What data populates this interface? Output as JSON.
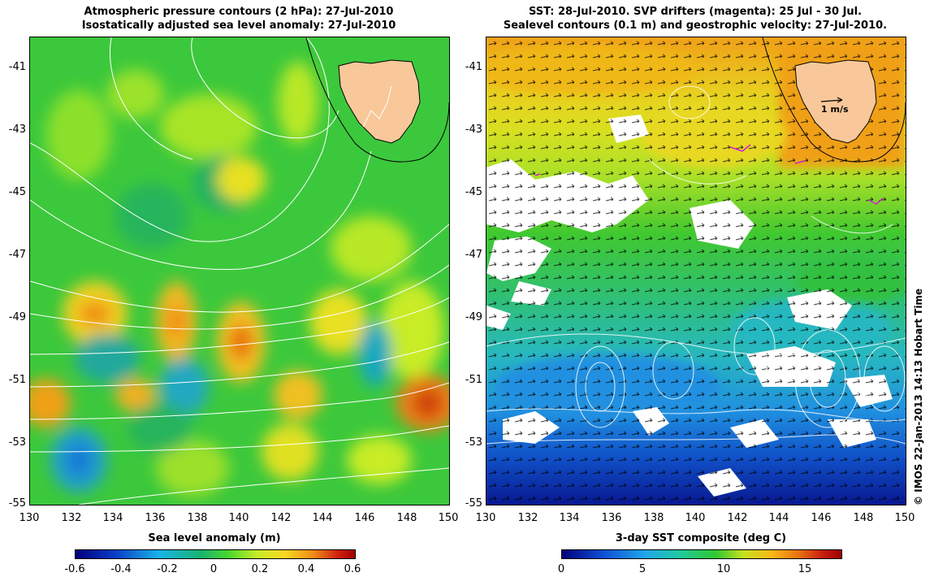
{
  "left_panel": {
    "title_line1": "Atmospheric pressure contours (2 hPa): 27-Jul-2010",
    "title_line2": "Isostatically adjusted sea level anomaly: 27-Jul-2010",
    "colorbar_title": "Sea level anomaly (m)",
    "colorbar_ticks": [
      "-0.6",
      "-0.4",
      "-0.2",
      "0",
      "0.2",
      "0.4",
      "0.6"
    ]
  },
  "right_panel": {
    "title_line1": "SST: 28-Jul-2010. SVP drifters (magenta): 25 Jul - 30 Jul.",
    "title_line2": "Sealevel contours (0.1 m) and geostrophic velocity: 27-Jul-2010.",
    "velocity_scale_label": "1 m/s",
    "colorbar_title": "3-day SST composite (deg C)",
    "colorbar_ticks": [
      "0",
      "5",
      "10",
      "15"
    ]
  },
  "axes": {
    "lat_ticks": [
      "-41",
      "-43",
      "-45",
      "-47",
      "-49",
      "-51",
      "-53",
      "-55"
    ],
    "lon_ticks": [
      "130",
      "132",
      "134",
      "136",
      "138",
      "140",
      "142",
      "144",
      "146",
      "148",
      "150"
    ]
  },
  "credit": "© IMOS 22-Jan-2013 14:13 Hobart Time",
  "colors": {
    "land": "#f8c89a",
    "sla_scale": [
      "#00007a",
      "#0a3cc8",
      "#18b4e8",
      "#18b46e",
      "#4cd82c",
      "#c8ec28",
      "#f8d820",
      "#f08c18",
      "#d02010",
      "#a00000"
    ],
    "sst_scale": [
      "#00007a",
      "#1050d8",
      "#20a8e8",
      "#20c8a0",
      "#30c830",
      "#c8e020",
      "#f8b818",
      "#e87010",
      "#c82010",
      "#a00000"
    ]
  }
}
